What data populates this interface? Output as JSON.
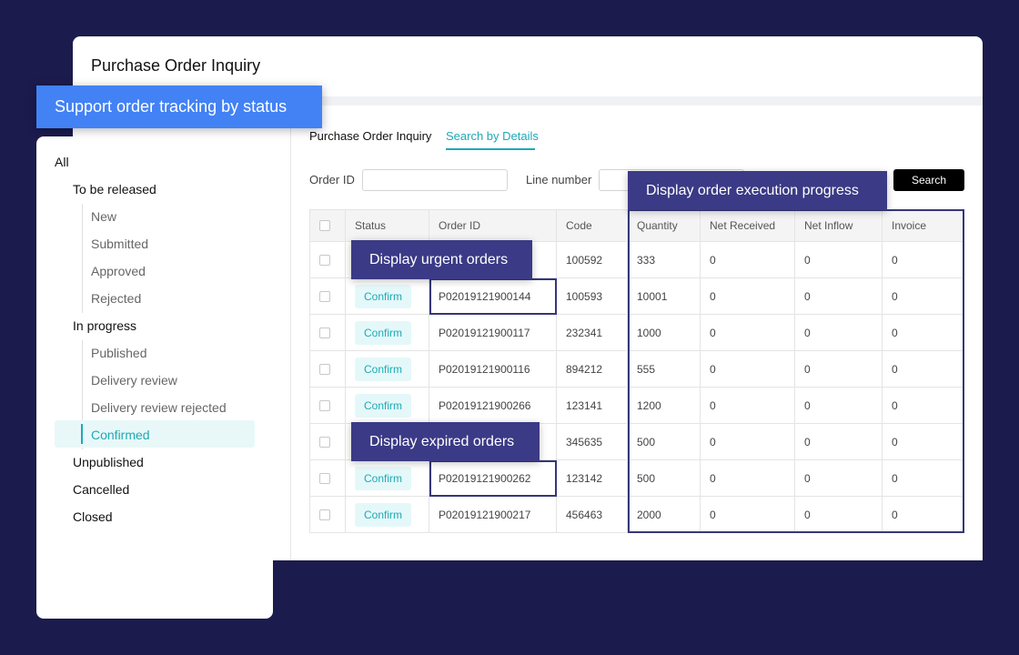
{
  "header": {
    "title": "Purchase Order Inquiry"
  },
  "callouts": {
    "status": "Support order tracking by status",
    "urgent": "Display urgent orders",
    "expired": "Display expired orders",
    "progress": "Display order execution progress"
  },
  "tabs": [
    "Purchase Order Inquiry",
    "Search by Details"
  ],
  "filters": {
    "order_id": "Order ID",
    "line_number": "Line number",
    "search": "Search"
  },
  "table": {
    "columns": [
      "Status",
      "Order ID",
      "Code",
      "Quantity",
      "Net Received",
      "Net Inflow",
      "Invoice"
    ],
    "rows": [
      [
        null,
        null,
        100592,
        333,
        0,
        0,
        0
      ],
      [
        "Confirm",
        "P02019121900144",
        100593,
        10001,
        0,
        0,
        0
      ],
      [
        "Confirm",
        "P02019121900117",
        232341,
        1000,
        0,
        0,
        0
      ],
      [
        "Confirm",
        "P02019121900116",
        894212,
        555,
        0,
        0,
        0
      ],
      [
        "Confirm",
        "P02019121900266",
        123141,
        1200,
        0,
        0,
        0
      ],
      [
        null,
        null,
        345635,
        500,
        0,
        0,
        0
      ],
      [
        "Confirm",
        "P02019121900262",
        123142,
        500,
        0,
        0,
        0
      ],
      [
        "Confirm",
        "P02019121900217",
        456463,
        2000,
        0,
        0,
        0
      ]
    ]
  },
  "tree": {
    "root": "All",
    "nodes": [
      {
        "label": "To be released",
        "children": [
          "New",
          "Submitted",
          "Approved",
          "Rejected"
        ]
      },
      {
        "label": "In progress",
        "children": [
          "Published",
          "Delivery review",
          "Delivery review rejected",
          "Confirmed"
        ]
      },
      {
        "label": "Unpublished",
        "children": []
      },
      {
        "label": "Cancelled",
        "children": []
      },
      {
        "label": "Closed",
        "children": []
      }
    ]
  }
}
